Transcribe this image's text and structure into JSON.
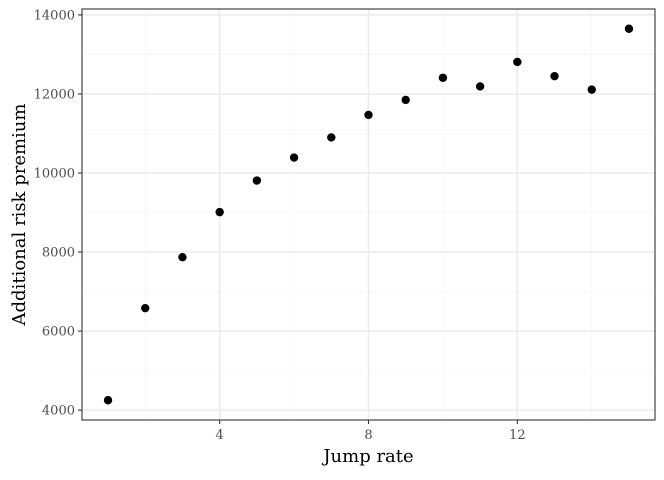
{
  "chart_data": {
    "type": "scatter",
    "title": "",
    "xlabel": "Jump rate",
    "ylabel": "Additional risk premium",
    "xlim": [
      0.3,
      15.7
    ],
    "ylim": [
      3750,
      14150
    ],
    "x_ticks": [
      4,
      8,
      12
    ],
    "y_ticks": [
      4000,
      6000,
      8000,
      10000,
      12000,
      14000
    ],
    "x_tick_labels": [
      "4",
      "8",
      "12"
    ],
    "y_tick_labels": [
      "4000",
      "6000",
      "8000",
      "10000",
      "12000",
      "14000"
    ],
    "grid": true,
    "legend": "none",
    "colors": {
      "points": "#000000",
      "grid_major": "#ebebeb",
      "grid_minor": "#f5f5f5",
      "panel_border": "#333333"
    },
    "x": [
      1,
      2,
      3,
      4,
      5,
      6,
      7,
      8,
      9,
      10,
      11,
      12,
      13,
      14,
      15
    ],
    "y": [
      4250,
      6580,
      7870,
      9010,
      9810,
      10390,
      10900,
      11470,
      11850,
      12410,
      12190,
      12810,
      12450,
      12110,
      13650
    ]
  }
}
